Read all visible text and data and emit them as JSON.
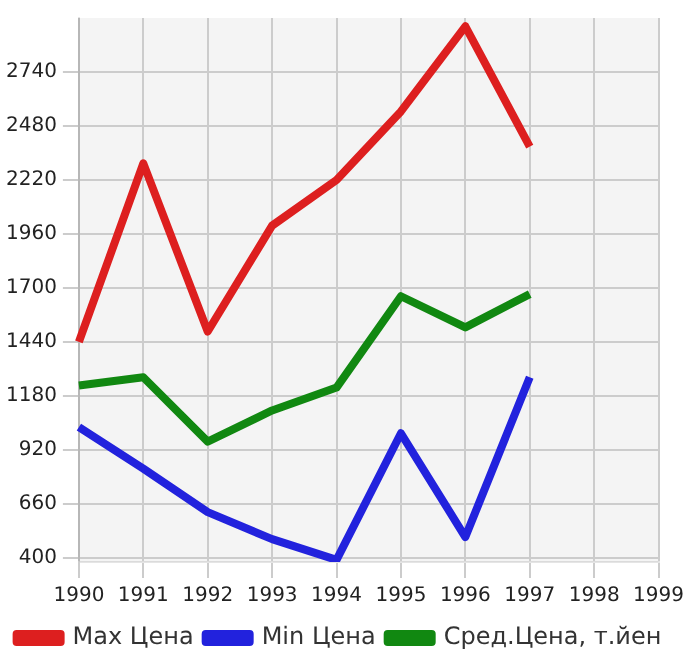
{
  "chart_data": {
    "type": "line",
    "categories": [
      "1990",
      "1991",
      "1992",
      "1993",
      "1994",
      "1995",
      "1996",
      "1997",
      "1998",
      "1999"
    ],
    "series": [
      {
        "name": "Max Цена",
        "color": "#dd1f1f",
        "values": [
          1440,
          2300,
          1490,
          2000,
          2220,
          2550,
          2960,
          2380,
          null,
          null
        ]
      },
      {
        "name": "Min Цена",
        "color": "#2222dd",
        "values": [
          1030,
          830,
          620,
          490,
          390,
          1000,
          500,
          1270,
          null,
          null
        ]
      },
      {
        "name": "Сред.Цена, т.йен",
        "color": "#118811",
        "values": [
          1230,
          1270,
          960,
          1110,
          1220,
          1660,
          1510,
          1670,
          null,
          null
        ]
      }
    ],
    "ylim": [
      380,
      3000
    ],
    "yticks": [
      400,
      660,
      920,
      1180,
      1440,
      1700,
      1960,
      2220,
      2480,
      2740
    ],
    "grid": true,
    "legend": "bottom",
    "marker": "none",
    "line_style": "solid"
  }
}
